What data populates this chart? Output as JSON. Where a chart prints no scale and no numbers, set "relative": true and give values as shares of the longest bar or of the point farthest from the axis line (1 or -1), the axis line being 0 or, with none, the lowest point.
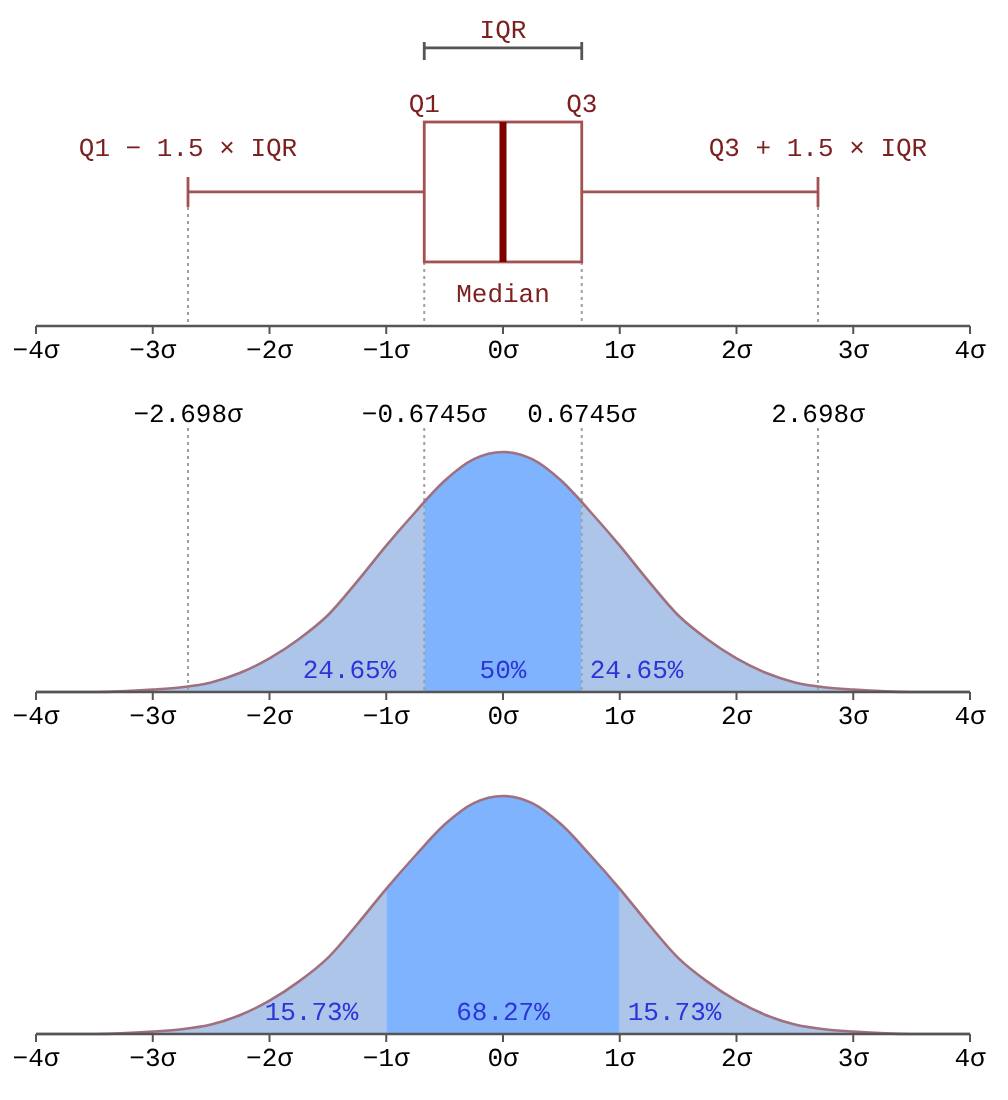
{
  "chart_data": [
    {
      "type": "box",
      "orientation": "horizontal",
      "categories": [
        null
      ],
      "color": "#a35252",
      "boxes": [
        {
          "low": -2.698,
          "q1": -0.6745,
          "median": 0,
          "q3": 0.6745,
          "high": 2.698
        }
      ],
      "xlim": [
        -4,
        4
      ],
      "xticks": [
        {
          "value": -4,
          "label": "−4σ"
        },
        {
          "value": -3,
          "label": "−3σ"
        },
        {
          "value": -2,
          "label": "−2σ"
        },
        {
          "value": -1,
          "label": "−1σ"
        },
        {
          "value": 0,
          "label": "0σ"
        },
        {
          "value": 1,
          "label": "1σ"
        },
        {
          "value": 2,
          "label": "2σ"
        },
        {
          "value": 3,
          "label": "3σ"
        },
        {
          "value": 4,
          "label": "4σ"
        }
      ],
      "annotations": [
        "IQR",
        "Q1",
        "Q3",
        "Q1 − 1.5 × IQR",
        "Q3 + 1.5 × IQR",
        "Median"
      ],
      "ref_lines": [
        {
          "axis": "x",
          "value": -2.698,
          "line_style": "dotted",
          "color": "#a0a0a0"
        },
        {
          "axis": "x",
          "value": -0.6745,
          "line_style": "dotted",
          "color": "#a0a0a0"
        },
        {
          "axis": "x",
          "value": 0.6745,
          "line_style": "dotted",
          "color": "#a0a0a0"
        },
        {
          "axis": "x",
          "value": 2.698,
          "line_style": "dotted",
          "color": "#a0a0a0"
        }
      ]
    },
    {
      "type": "area",
      "relative": true,
      "xlim": [
        -4,
        4
      ],
      "xticks": [
        {
          "value": -4,
          "label": "−4σ"
        },
        {
          "value": -3,
          "label": "−3σ"
        },
        {
          "value": -2,
          "label": "−2σ"
        },
        {
          "value": -1,
          "label": "−1σ"
        },
        {
          "value": 0,
          "label": "0σ"
        },
        {
          "value": 1,
          "label": "1σ"
        },
        {
          "value": 2,
          "label": "2σ"
        },
        {
          "value": 3,
          "label": "3σ"
        },
        {
          "value": 4,
          "label": "4σ"
        }
      ],
      "series": [
        {
          "x": [
            -4,
            -3.5,
            -3,
            -2.75,
            -2.5,
            -2.25,
            -2,
            -1.75,
            -1.5,
            -1.25,
            -1,
            -0.75,
            -0.6745
          ],
          "values": [
            0,
            0,
            0.01,
            0.02,
            0.04,
            0.08,
            0.14,
            0.22,
            0.32,
            0.46,
            0.61,
            0.75,
            0.8
          ],
          "color": "#adc5e9"
        },
        {
          "x": [
            -0.6745,
            -0.5,
            -0.25,
            0,
            0.25,
            0.5,
            0.6745
          ],
          "values": [
            0.8,
            0.88,
            0.97,
            1,
            0.97,
            0.88,
            0.8
          ],
          "color": "#80b3fd"
        },
        {
          "x": [
            0.6745,
            0.75,
            1,
            1.25,
            1.5,
            1.75,
            2,
            2.25,
            2.5,
            2.75,
            3,
            3.5,
            4
          ],
          "values": [
            0.8,
            0.75,
            0.61,
            0.46,
            0.32,
            0.22,
            0.14,
            0.08,
            0.04,
            0.02,
            0.01,
            0,
            0
          ],
          "color": "#adc5e9"
        },
        {
          "type": "line",
          "x": [
            -4,
            -3.5,
            -3,
            -2.75,
            -2.5,
            -2.25,
            -2,
            -1.75,
            -1.5,
            -1.25,
            -1,
            -0.75,
            -0.5,
            -0.25,
            0,
            0.25,
            0.5,
            0.75,
            1,
            1.25,
            1.5,
            1.75,
            2,
            2.25,
            2.5,
            2.75,
            3,
            3.5,
            4
          ],
          "values": [
            0,
            0,
            0.01,
            0.02,
            0.04,
            0.08,
            0.14,
            0.22,
            0.32,
            0.46,
            0.61,
            0.75,
            0.88,
            0.97,
            1,
            0.97,
            0.88,
            0.75,
            0.61,
            0.46,
            0.32,
            0.22,
            0.14,
            0.08,
            0.04,
            0.02,
            0.01,
            0,
            0
          ],
          "color": "#a0707f"
        }
      ],
      "ref_lines": [
        {
          "axis": "x",
          "value": -2.698,
          "label": "−2.698σ",
          "line_style": "dotted",
          "color": "#a0a0a0"
        },
        {
          "axis": "x",
          "value": -0.6745,
          "label": "−0.6745σ",
          "line_style": "dotted",
          "color": "#a0a0a0"
        },
        {
          "axis": "x",
          "value": 0.6745,
          "label": "0.6745σ",
          "line_style": "dotted",
          "color": "#a0a0a0"
        },
        {
          "axis": "x",
          "value": 2.698,
          "label": "2.698σ",
          "line_style": "dotted",
          "color": "#a0a0a0"
        }
      ],
      "annotations": [
        "24.65%",
        "50%",
        "24.65%"
      ]
    },
    {
      "type": "area",
      "relative": true,
      "xlim": [
        -4,
        4
      ],
      "xticks": [
        {
          "value": -4,
          "label": "−4σ"
        },
        {
          "value": -3,
          "label": "−3σ"
        },
        {
          "value": -2,
          "label": "−2σ"
        },
        {
          "value": -1,
          "label": "−1σ"
        },
        {
          "value": 0,
          "label": "0σ"
        },
        {
          "value": 1,
          "label": "1σ"
        },
        {
          "value": 2,
          "label": "2σ"
        },
        {
          "value": 3,
          "label": "3σ"
        },
        {
          "value": 4,
          "label": "4σ"
        }
      ],
      "series": [
        {
          "x": [
            -4,
            -3.5,
            -3,
            -2.75,
            -2.5,
            -2.25,
            -2,
            -1.75,
            -1.5,
            -1.25,
            -1
          ],
          "values": [
            0,
            0,
            0.01,
            0.02,
            0.04,
            0.08,
            0.14,
            0.22,
            0.32,
            0.46,
            0.61
          ],
          "color": "#adc5e9"
        },
        {
          "x": [
            -1,
            -0.75,
            -0.5,
            -0.25,
            0,
            0.25,
            0.5,
            0.75,
            1
          ],
          "values": [
            0.61,
            0.75,
            0.88,
            0.97,
            1,
            0.97,
            0.88,
            0.75,
            0.61
          ],
          "color": "#80b3fd"
        },
        {
          "x": [
            1,
            1.25,
            1.5,
            1.75,
            2,
            2.25,
            2.5,
            2.75,
            3,
            3.5,
            4
          ],
          "values": [
            0.61,
            0.46,
            0.32,
            0.22,
            0.14,
            0.08,
            0.04,
            0.02,
            0.01,
            0,
            0
          ],
          "color": "#adc5e9"
        },
        {
          "type": "line",
          "x": [
            -4,
            -3.5,
            -3,
            -2.75,
            -2.5,
            -2.25,
            -2,
            -1.75,
            -1.5,
            -1.25,
            -1,
            -0.75,
            -0.5,
            -0.25,
            0,
            0.25,
            0.5,
            0.75,
            1,
            1.25,
            1.5,
            1.75,
            2,
            2.25,
            2.5,
            2.75,
            3,
            3.5,
            4
          ],
          "values": [
            0,
            0,
            0.01,
            0.02,
            0.04,
            0.08,
            0.14,
            0.22,
            0.32,
            0.46,
            0.61,
            0.75,
            0.88,
            0.97,
            1,
            0.97,
            0.88,
            0.75,
            0.61,
            0.46,
            0.32,
            0.22,
            0.14,
            0.08,
            0.04,
            0.02,
            0.01,
            0,
            0
          ],
          "color": "#a0707f"
        }
      ],
      "annotations": [
        "15.73%",
        "68.27%",
        "15.73%"
      ]
    }
  ]
}
